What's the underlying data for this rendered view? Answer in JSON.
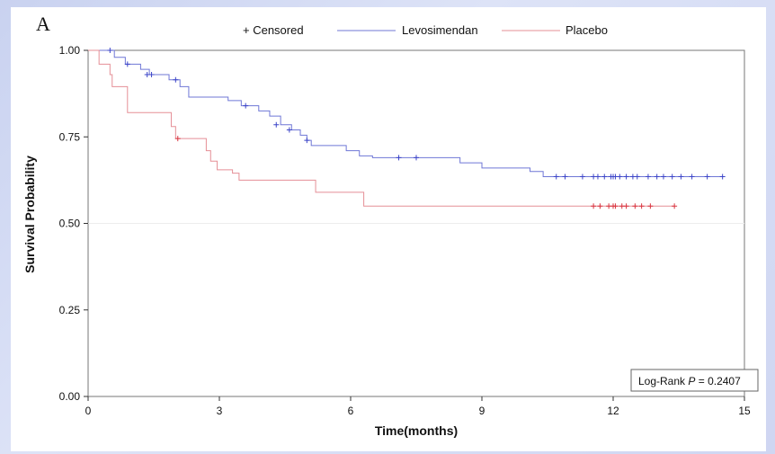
{
  "chart_data": {
    "type": "line",
    "panel_label": "A",
    "xlabel": "Time(months)",
    "ylabel": "Survival Probability",
    "xlim": [
      0,
      15
    ],
    "ylim": [
      0,
      1
    ],
    "xticks": [
      0,
      3,
      6,
      9,
      12,
      15
    ],
    "yticks": [
      "0.00",
      "0.25",
      "0.50",
      "0.75",
      "1.00"
    ],
    "reference_line": 0.5,
    "legend": {
      "placement": "top",
      "censored_label": "+ Censored"
    },
    "annotation": {
      "prefix": "Log-Rank ",
      "p_symbol": "P",
      "suffix": " = 0.2407"
    },
    "series": [
      {
        "name": "Levosimendan",
        "color": "#6f77d6",
        "censor_color": "#3b44c8",
        "steps": [
          [
            0,
            1.0
          ],
          [
            0.6,
            0.98
          ],
          [
            0.85,
            0.96
          ],
          [
            1.2,
            0.945
          ],
          [
            1.4,
            0.93
          ],
          [
            1.85,
            0.915
          ],
          [
            2.1,
            0.895
          ],
          [
            2.3,
            0.865
          ],
          [
            3.2,
            0.855
          ],
          [
            3.5,
            0.84
          ],
          [
            3.9,
            0.825
          ],
          [
            4.15,
            0.81
          ],
          [
            4.4,
            0.785
          ],
          [
            4.65,
            0.77
          ],
          [
            4.85,
            0.755
          ],
          [
            5.0,
            0.74
          ],
          [
            5.1,
            0.725
          ],
          [
            5.9,
            0.71
          ],
          [
            6.2,
            0.695
          ],
          [
            6.5,
            0.69
          ],
          [
            8.5,
            0.675
          ],
          [
            9.0,
            0.66
          ],
          [
            10.1,
            0.65
          ],
          [
            10.4,
            0.635
          ],
          [
            14.5,
            0.635
          ]
        ],
        "censored": [
          [
            0.5,
            1.0
          ],
          [
            0.9,
            0.96
          ],
          [
            1.35,
            0.93
          ],
          [
            1.45,
            0.93
          ],
          [
            2.0,
            0.915
          ],
          [
            3.6,
            0.84
          ],
          [
            4.3,
            0.785
          ],
          [
            4.6,
            0.77
          ],
          [
            5.0,
            0.74
          ],
          [
            7.1,
            0.69
          ],
          [
            7.5,
            0.69
          ],
          [
            10.7,
            0.635
          ],
          [
            10.9,
            0.635
          ],
          [
            11.3,
            0.635
          ],
          [
            11.55,
            0.635
          ],
          [
            11.65,
            0.635
          ],
          [
            11.8,
            0.635
          ],
          [
            11.95,
            0.635
          ],
          [
            12.0,
            0.635
          ],
          [
            12.05,
            0.635
          ],
          [
            12.15,
            0.635
          ],
          [
            12.3,
            0.635
          ],
          [
            12.45,
            0.635
          ],
          [
            12.55,
            0.635
          ],
          [
            12.8,
            0.635
          ],
          [
            13.0,
            0.635
          ],
          [
            13.15,
            0.635
          ],
          [
            13.35,
            0.635
          ],
          [
            13.55,
            0.635
          ],
          [
            13.8,
            0.635
          ],
          [
            14.15,
            0.635
          ],
          [
            14.5,
            0.635
          ]
        ]
      },
      {
        "name": "Placebo",
        "color": "#e58f96",
        "censor_color": "#d9343f",
        "steps": [
          [
            0,
            1.0
          ],
          [
            0.25,
            0.96
          ],
          [
            0.5,
            0.93
          ],
          [
            0.55,
            0.895
          ],
          [
            0.9,
            0.82
          ],
          [
            1.9,
            0.78
          ],
          [
            2.0,
            0.745
          ],
          [
            2.7,
            0.71
          ],
          [
            2.8,
            0.68
          ],
          [
            2.95,
            0.655
          ],
          [
            3.3,
            0.645
          ],
          [
            3.45,
            0.625
          ],
          [
            5.2,
            0.59
          ],
          [
            6.3,
            0.55
          ],
          [
            13.4,
            0.55
          ]
        ],
        "censored": [
          [
            2.05,
            0.745
          ],
          [
            11.55,
            0.55
          ],
          [
            11.7,
            0.55
          ],
          [
            11.9,
            0.55
          ],
          [
            12.0,
            0.55
          ],
          [
            12.05,
            0.55
          ],
          [
            12.2,
            0.55
          ],
          [
            12.3,
            0.55
          ],
          [
            12.5,
            0.55
          ],
          [
            12.65,
            0.55
          ],
          [
            12.85,
            0.55
          ],
          [
            13.4,
            0.55
          ]
        ]
      }
    ]
  }
}
